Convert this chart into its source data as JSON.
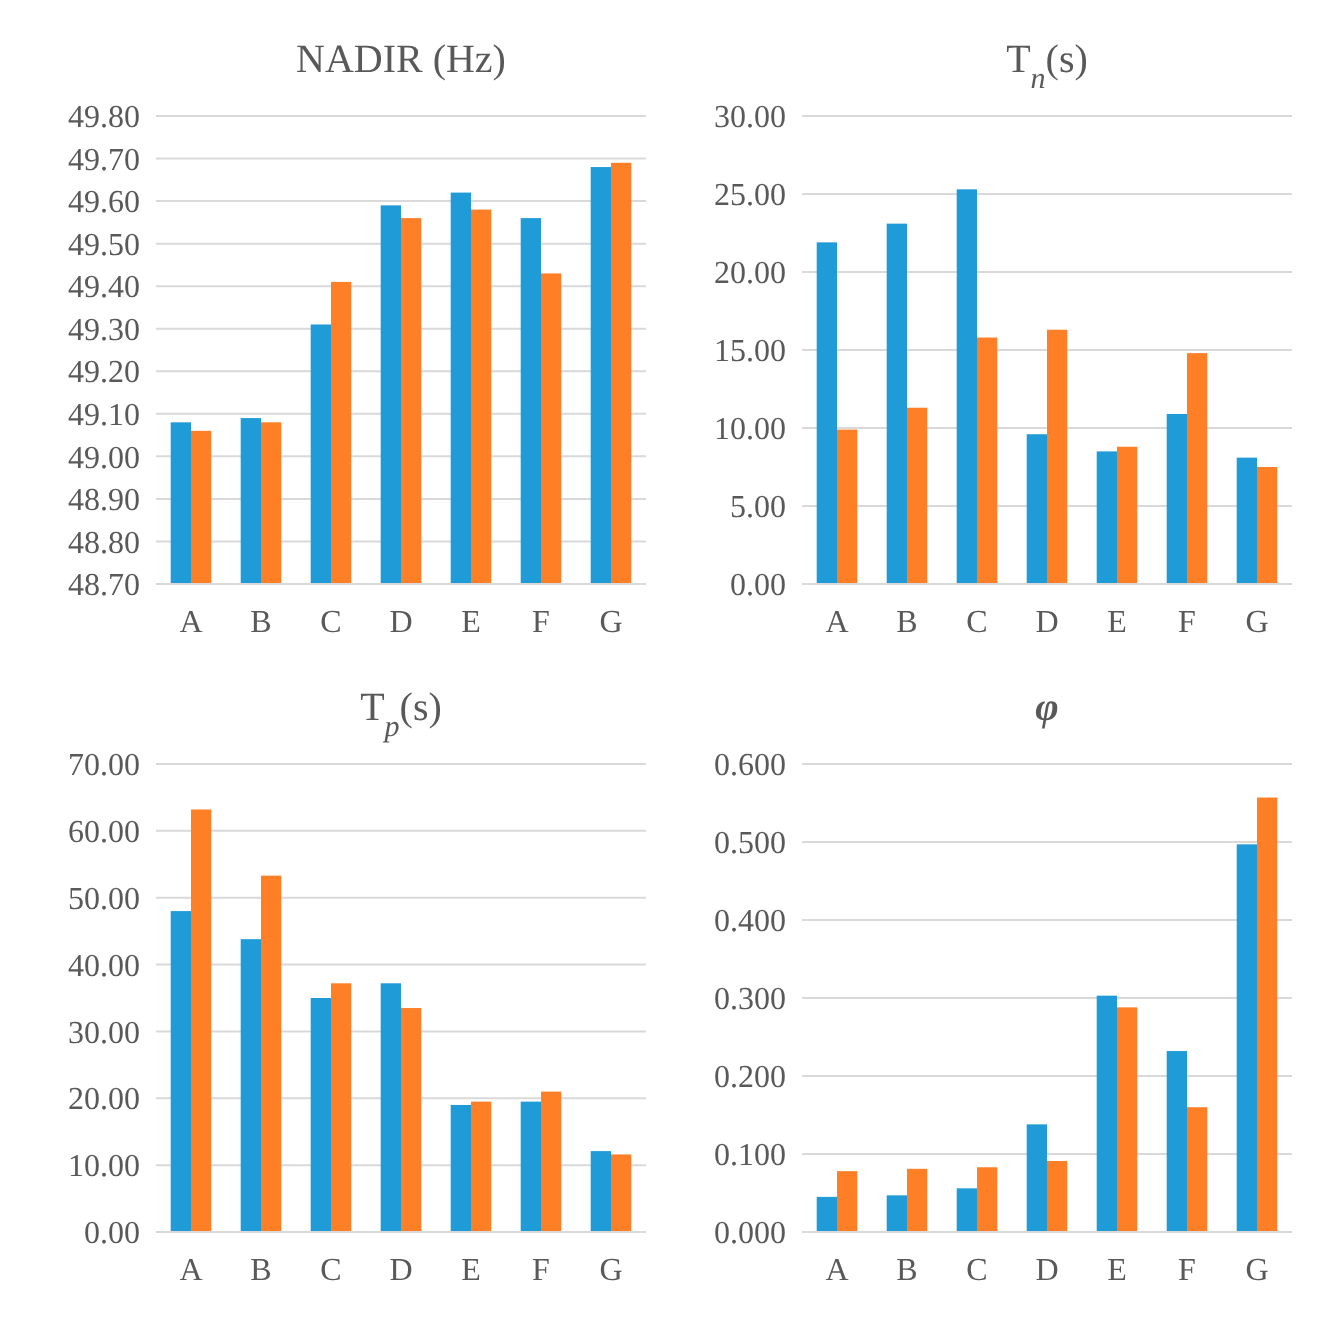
{
  "chart_data": [
    {
      "type": "bar",
      "title": "NADIR (Hz)",
      "categories": [
        "A",
        "B",
        "C",
        "D",
        "E",
        "F",
        "G"
      ],
      "ylim": [
        48.7,
        49.8
      ],
      "yticks": [
        {
          "value": 48.7,
          "label": "48.70"
        },
        {
          "value": 48.8,
          "label": "48.80"
        },
        {
          "value": 48.9,
          "label": "48.90"
        },
        {
          "value": 49.0,
          "label": "49.00"
        },
        {
          "value": 49.1,
          "label": "49.10"
        },
        {
          "value": 49.2,
          "label": "49.20"
        },
        {
          "value": 49.3,
          "label": "49.30"
        },
        {
          "value": 49.4,
          "label": "49.40"
        },
        {
          "value": 49.5,
          "label": "49.50"
        },
        {
          "value": 49.6,
          "label": "49.60"
        },
        {
          "value": 49.7,
          "label": "49.70"
        },
        {
          "value": 49.8,
          "label": "49.80"
        }
      ],
      "grid": "y",
      "series": [
        {
          "color": "#1f9bd7",
          "values": [
            49.08,
            49.09,
            49.31,
            49.59,
            49.62,
            49.56,
            49.68
          ]
        },
        {
          "color": "#ff7f27",
          "values": [
            49.06,
            49.08,
            49.41,
            49.56,
            49.58,
            49.43,
            49.69
          ]
        }
      ]
    },
    {
      "type": "bar",
      "title": "T$_{n}$(s)",
      "categories": [
        "A",
        "B",
        "C",
        "D",
        "E",
        "F",
        "G"
      ],
      "ylim": [
        0,
        30
      ],
      "yticks": [
        {
          "value": 0,
          "label": "0.00"
        },
        {
          "value": 5,
          "label": "5.00"
        },
        {
          "value": 10,
          "label": "10.00"
        },
        {
          "value": 15,
          "label": "15.00"
        },
        {
          "value": 20,
          "label": "20.00"
        },
        {
          "value": 25,
          "label": "25.00"
        },
        {
          "value": 30,
          "label": "30.00"
        }
      ],
      "grid": "y",
      "series": [
        {
          "color": "#1f9bd7",
          "values": [
            21.9,
            23.1,
            25.3,
            9.6,
            8.5,
            10.9,
            8.1
          ]
        },
        {
          "color": "#ff7f27",
          "values": [
            9.9,
            11.3,
            15.8,
            16.3,
            8.8,
            14.8,
            7.5
          ]
        }
      ]
    },
    {
      "type": "bar",
      "title": "T$_{p}$(s)",
      "categories": [
        "A",
        "B",
        "C",
        "D",
        "E",
        "F",
        "G"
      ],
      "ylim": [
        0,
        70
      ],
      "yticks": [
        {
          "value": 0,
          "label": "0.00"
        },
        {
          "value": 10,
          "label": "10.00"
        },
        {
          "value": 20,
          "label": "20.00"
        },
        {
          "value": 30,
          "label": "30.00"
        },
        {
          "value": 40,
          "label": "40.00"
        },
        {
          "value": 50,
          "label": "50.00"
        },
        {
          "value": 60,
          "label": "60.00"
        },
        {
          "value": 70,
          "label": "70.00"
        }
      ],
      "grid": "y",
      "series": [
        {
          "color": "#1f9bd7",
          "values": [
            48.0,
            43.8,
            35.0,
            37.2,
            19.0,
            19.5,
            12.1
          ]
        },
        {
          "color": "#ff7f27",
          "values": [
            63.2,
            53.3,
            37.2,
            33.5,
            19.5,
            21.0,
            11.6
          ]
        }
      ]
    },
    {
      "type": "bar",
      "title": "φ",
      "categories": [
        "A",
        "B",
        "C",
        "D",
        "E",
        "F",
        "G"
      ],
      "ylim": [
        0,
        0.6
      ],
      "yticks": [
        {
          "value": 0,
          "label": "0.000"
        },
        {
          "value": 0.1,
          "label": "0.100"
        },
        {
          "value": 0.2,
          "label": "0.200"
        },
        {
          "value": 0.3,
          "label": "0.300"
        },
        {
          "value": 0.4,
          "label": "0.400"
        },
        {
          "value": 0.5,
          "label": "0.500"
        },
        {
          "value": 0.6,
          "label": "0.600"
        }
      ],
      "grid": "y",
      "series": [
        {
          "color": "#1f9bd7",
          "values": [
            0.045,
            0.047,
            0.056,
            0.138,
            0.303,
            0.232,
            0.497
          ]
        },
        {
          "color": "#ff7f27",
          "values": [
            0.078,
            0.081,
            0.083,
            0.091,
            0.288,
            0.16,
            0.557
          ]
        }
      ]
    }
  ]
}
